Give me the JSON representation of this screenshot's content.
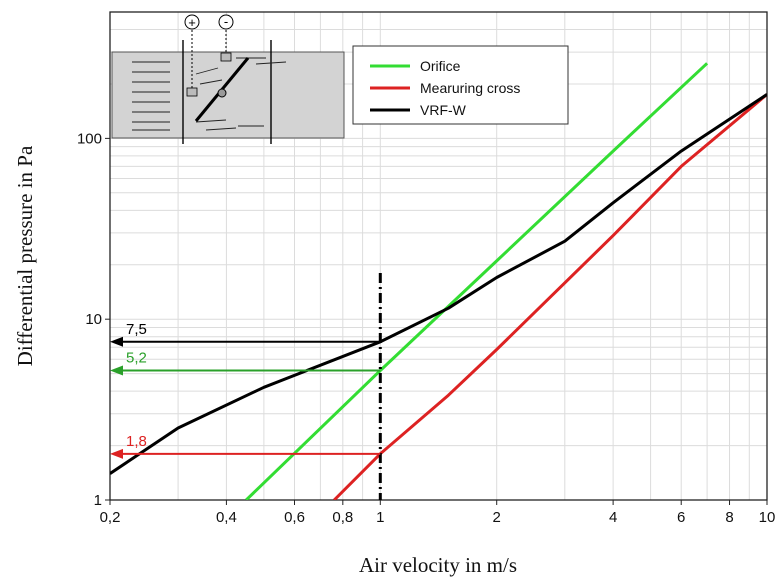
{
  "chart_data": {
    "type": "line",
    "title": "",
    "xlabel": "Air velocity in m/s",
    "ylabel": "Differential pressure in Pa",
    "x_scale": "log",
    "y_scale": "log",
    "xlim": [
      0.2,
      10
    ],
    "ylim": [
      1,
      500
    ],
    "grid": true,
    "legend_position": "top-center",
    "x_ticks": [
      {
        "value": 0.2,
        "label": "0,2"
      },
      {
        "value": 0.4,
        "label": "0,4"
      },
      {
        "value": 0.6,
        "label": "0,6"
      },
      {
        "value": 0.8,
        "label": "0,8"
      },
      {
        "value": 1,
        "label": "1"
      },
      {
        "value": 2,
        "label": "2"
      },
      {
        "value": 4,
        "label": "4"
      },
      {
        "value": 6,
        "label": "6"
      },
      {
        "value": 8,
        "label": "8"
      },
      {
        "value": 10,
        "label": "10"
      }
    ],
    "y_ticks": [
      {
        "value": 1,
        "label": "1"
      },
      {
        "value": 10,
        "label": "10"
      },
      {
        "value": 100,
        "label": "100"
      }
    ],
    "series": [
      {
        "name": "Orifice",
        "color": "#33dd33",
        "points": [
          [
            0.45,
            1.0
          ],
          [
            1.0,
            5.2
          ],
          [
            2.0,
            21
          ],
          [
            4.0,
            85
          ],
          [
            7.0,
            260
          ]
        ]
      },
      {
        "name": "Mearuring cross",
        "color": "#dd2222",
        "points": [
          [
            0.76,
            1.0
          ],
          [
            1.0,
            1.8
          ],
          [
            1.5,
            3.8
          ],
          [
            2.0,
            6.8
          ],
          [
            4.0,
            29
          ],
          [
            6.0,
            70
          ],
          [
            10.0,
            175
          ]
        ]
      },
      {
        "name": "VRF-W",
        "color": "#000000",
        "points": [
          [
            0.2,
            1.4
          ],
          [
            0.3,
            2.5
          ],
          [
            0.5,
            4.2
          ],
          [
            1.0,
            7.5
          ],
          [
            1.5,
            11.5
          ],
          [
            2.0,
            17
          ],
          [
            3.0,
            27
          ],
          [
            4.0,
            44
          ],
          [
            6.0,
            85
          ],
          [
            10.0,
            175
          ]
        ]
      }
    ],
    "reference_line": {
      "x": 1,
      "style": "dash-dot",
      "color": "#000000",
      "y_top": 18
    },
    "annotations": [
      {
        "label": "7,5",
        "y": 7.5,
        "x_from": 1,
        "x_to": 0.2,
        "color": "#000000"
      },
      {
        "label": "5,2",
        "y": 5.2,
        "x_from": 1,
        "x_to": 0.2,
        "color": "#2aa02a"
      },
      {
        "label": "1,8",
        "y": 1.8,
        "x_from": 1,
        "x_to": 0.2,
        "color": "#dd2222"
      }
    ],
    "inset": {
      "plus_symbol": "+",
      "minus_symbol": "-"
    }
  }
}
